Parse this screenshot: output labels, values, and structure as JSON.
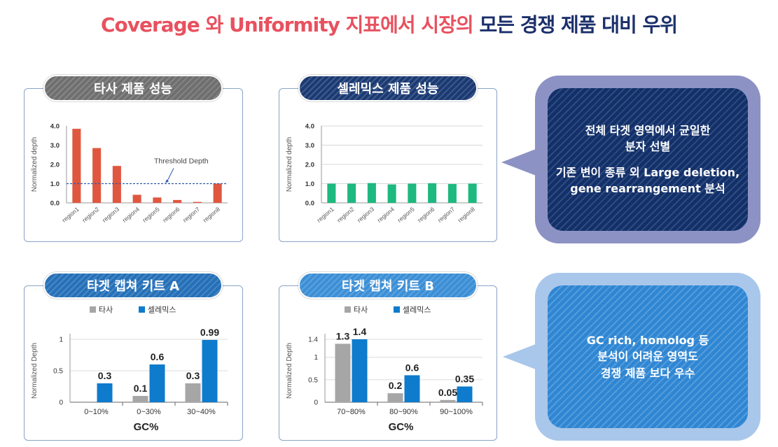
{
  "headline": {
    "part_red": "Coverage 와 Uniformity 지표에서 시장의",
    "part_navy": " 모든 경쟁 제품 대비 우위"
  },
  "panels": {
    "competitor": {
      "label": "타사 제품 성능"
    },
    "celemics": {
      "label": "셀레믹스 제품 성능"
    },
    "kitA": {
      "label": "타겟 캡쳐 키트 A"
    },
    "kitB": {
      "label": "타겟 캡쳐 키트 B"
    }
  },
  "callouts": {
    "first": {
      "line1": "전체 타겟 영역에서 균일한",
      "line2": "분자 선별",
      "line3": "기존 변이 종류 외 Large deletion,",
      "line4": "gene rearrangement 분석"
    },
    "second": {
      "line1": "GC rich, homolog 등",
      "line2": "분석이 어려운 영역도",
      "line3": "경쟁 제품 보다 우수"
    }
  },
  "colors": {
    "red_bar": "#e0573f",
    "green_bar": "#1db980",
    "gray_bar": "#a6a6a6",
    "blue_bar": "#0e7bcc",
    "threshold": "#2f5aa8"
  },
  "chart_data": [
    {
      "type": "bar",
      "categories": [
        "region1",
        "region2",
        "region3",
        "region4",
        "region5",
        "region6",
        "region7",
        "region8"
      ],
      "values": [
        3.85,
        2.85,
        1.92,
        0.42,
        0.28,
        0.15,
        0.05,
        1.0
      ],
      "ylabel": "Normalized depth",
      "yticks": [
        "0.0",
        "1.0",
        "2.0",
        "3.0",
        "4.0"
      ],
      "ylim": [
        0,
        4
      ],
      "annotation": {
        "text": "Threshold Depth",
        "value": 1.0
      },
      "grid": false
    },
    {
      "type": "bar",
      "categories": [
        "region1",
        "region2",
        "region3",
        "region4",
        "region5",
        "region6",
        "region7",
        "region8"
      ],
      "values": [
        1.0,
        1.0,
        1.03,
        0.96,
        1.0,
        1.02,
        0.98,
        1.0
      ],
      "ylabel": "Normalized depth",
      "yticks": [
        "0.0",
        "1.0",
        "2.0",
        "3.0",
        "4.0"
      ],
      "ylim": [
        0,
        4
      ],
      "grid": true
    },
    {
      "type": "bar",
      "categories": [
        "0~10%",
        "0~30%",
        "30~40%"
      ],
      "series": [
        {
          "name": "타사",
          "values": [
            0.01,
            0.1,
            0.3
          ],
          "labels": [
            "",
            "0.1",
            "0.3"
          ]
        },
        {
          "name": "셀레믹스",
          "values": [
            0.3,
            0.6,
            0.99
          ],
          "labels": [
            "0.3",
            "0.6",
            "0.99"
          ]
        }
      ],
      "xlabel": "GC%",
      "ylabel": "Normalized Depth",
      "yticks": [
        "0",
        "0.5",
        "1"
      ],
      "ylim": [
        0,
        1.0
      ],
      "legend": "top",
      "grid": true
    },
    {
      "type": "bar",
      "categories": [
        "70~80%",
        "80~90%",
        "90~100%"
      ],
      "series": [
        {
          "name": "타사",
          "values": [
            1.3,
            0.2,
            0.05
          ],
          "labels": [
            "1.3",
            "0.2",
            "0.05"
          ]
        },
        {
          "name": "셀레믹스",
          "values": [
            1.4,
            0.6,
            0.35
          ],
          "labels": [
            "1.4",
            "0.6",
            "0.35"
          ]
        }
      ],
      "xlabel": "GC%",
      "ylabel": "Normalized Depth",
      "yticks": [
        "0",
        "0.5",
        "1",
        "1.4"
      ],
      "ylim": [
        0,
        1.4
      ],
      "legend": "top",
      "grid": true
    }
  ]
}
